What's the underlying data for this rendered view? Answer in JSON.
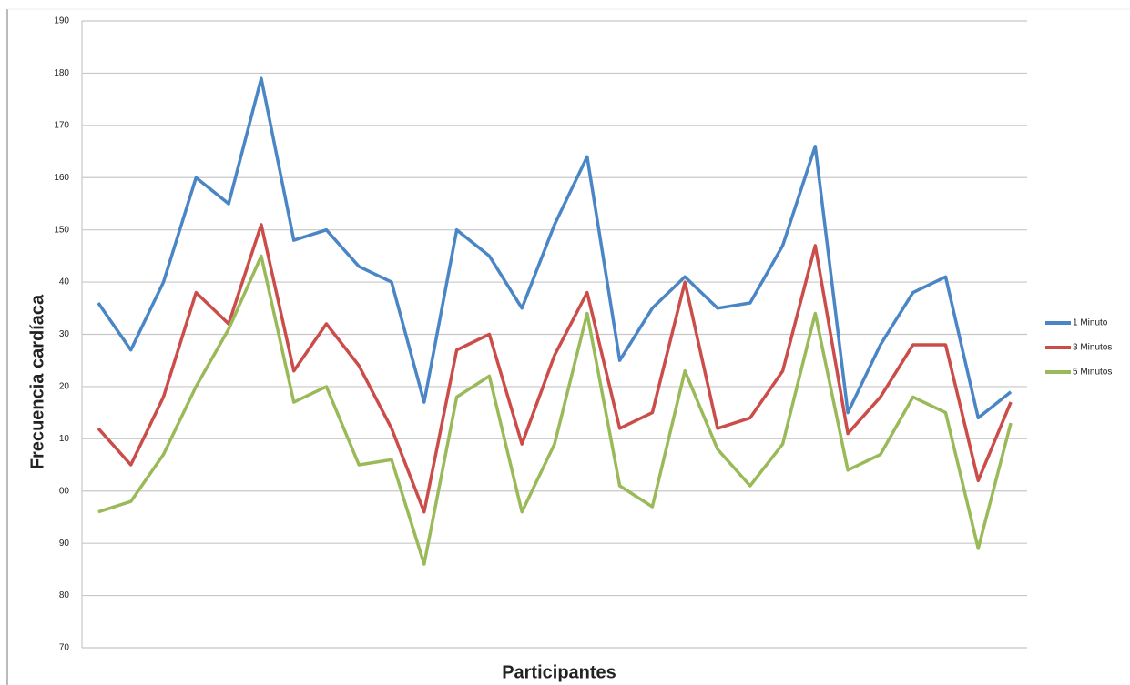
{
  "chart_data": {
    "type": "line",
    "x_label": "Participantes",
    "y_label": "Frecuencia cardíaca",
    "categories": [
      null,
      null,
      null,
      null,
      null,
      null,
      null,
      null,
      null,
      null,
      null,
      null,
      null,
      null,
      null,
      null,
      null,
      null,
      null,
      null,
      null,
      null,
      null,
      null,
      null,
      null,
      null,
      null,
      null
    ],
    "series": [
      {
        "name": "1 Minuto",
        "color": "#4a86c5",
        "values": [
          136,
          127,
          140,
          160,
          155,
          179,
          148,
          150,
          143,
          140,
          117,
          150,
          145,
          135,
          151,
          164,
          125,
          135,
          141,
          135,
          136,
          147,
          166,
          115,
          128,
          138,
          141,
          114,
          119
        ]
      },
      {
        "name": "3 Minutos",
        "color": "#cb4d4a",
        "values": [
          112,
          105,
          118,
          138,
          132,
          151,
          123,
          132,
          124,
          112,
          96,
          127,
          130,
          109,
          126,
          138,
          112,
          115,
          140,
          112,
          114,
          123,
          147,
          111,
          118,
          128,
          128,
          102,
          117
        ]
      },
      {
        "name": "5 Minutos",
        "color": "#9aba59",
        "values": [
          96,
          98,
          107,
          120,
          131,
          145,
          117,
          120,
          105,
          106,
          86,
          118,
          122,
          96,
          109,
          134,
          101,
          97,
          123,
          108,
          101,
          109,
          134,
          104,
          107,
          118,
          115,
          89,
          113
        ]
      }
    ],
    "ylim": [
      70,
      190
    ],
    "yticks": [
      70,
      80,
      90,
      {
        "value": 100,
        "label": "00"
      },
      {
        "value": 110,
        "label": "10"
      },
      {
        "value": 120,
        "label": "20"
      },
      {
        "value": 130,
        "label": "30"
      },
      {
        "value": 140,
        "label": "40"
      },
      150,
      160,
      170,
      180,
      190
    ],
    "grid": true,
    "legend": "right"
  }
}
